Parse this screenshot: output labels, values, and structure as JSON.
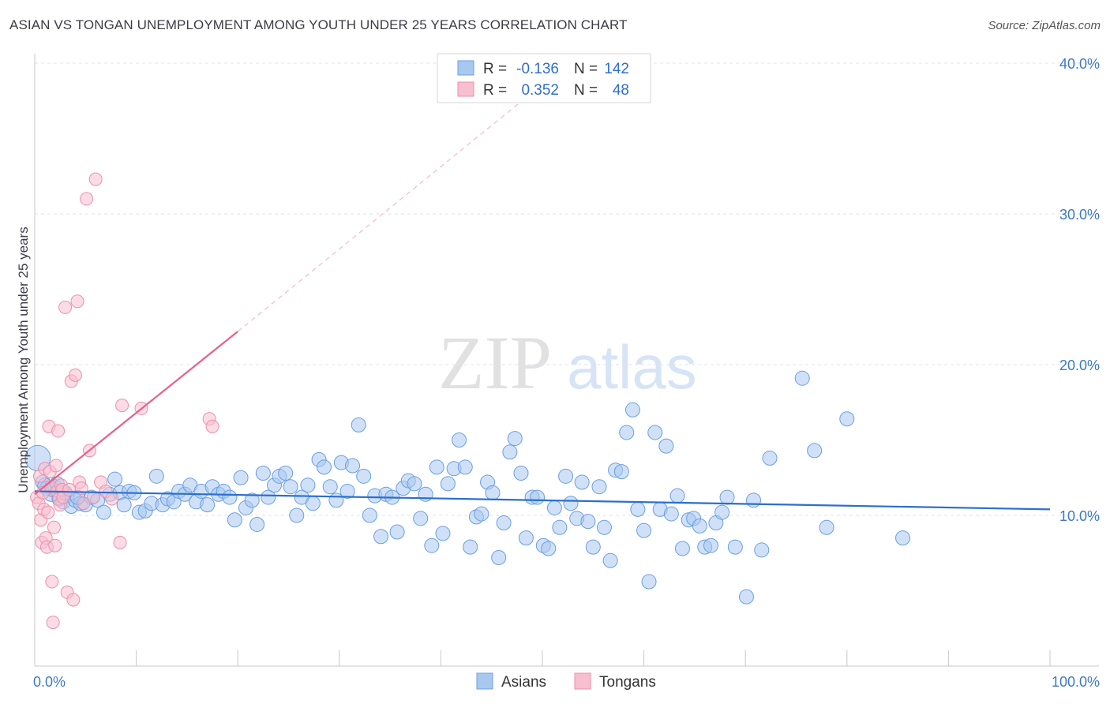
{
  "header": {
    "title": "ASIAN VS TONGAN UNEMPLOYMENT AMONG YOUTH UNDER 25 YEARS CORRELATION CHART",
    "source": "Source: ZipAtlas.com"
  },
  "watermark": {
    "zip": "ZIP",
    "atlas": "atlas"
  },
  "legend": {
    "rows": [
      {
        "r_label": "R =",
        "r_value": "-0.136",
        "n_label": "N =",
        "n_value": "142"
      },
      {
        "r_label": "R =",
        "r_value": "0.352",
        "n_label": "N =",
        "n_value": "48"
      }
    ]
  },
  "colors": {
    "asian_fill": "#a9c8f0",
    "asian_stroke": "#6a9fe0",
    "asian_line": "#2a6fcf",
    "tongan_fill": "#f7bfd0",
    "tongan_stroke": "#ec8fae",
    "tongan_line": "#e8608c",
    "tick_text": "#3d78c8",
    "grid": "#dde3ec"
  },
  "chart_data": {
    "type": "scatter",
    "title": "ASIAN VS TONGAN UNEMPLOYMENT AMONG YOUTH UNDER 25 YEARS CORRELATION CHART",
    "xlabel": "",
    "ylabel": "Unemployment Among Youth under 25 years",
    "xlim": [
      0,
      100
    ],
    "ylim": [
      0,
      41.5
    ],
    "x_tick_labels": [
      "0.0%",
      "100.0%"
    ],
    "y_ticks": [
      10,
      20,
      30,
      40
    ],
    "y_tick_labels": [
      "10.0%",
      "20.0%",
      "30.0%",
      "40.0%"
    ],
    "legend_entries": [
      "Asians",
      "Tongans"
    ],
    "series": [
      {
        "name": "Asians",
        "r": -0.136,
        "n": 142,
        "trend": {
          "x0": 0,
          "y0": 11.6,
          "x1": 100,
          "y1": 10.4
        },
        "points": [
          [
            0.3,
            13.8
          ],
          [
            0.8,
            12.2
          ],
          [
            1.2,
            11.8
          ],
          [
            1.6,
            11.4
          ],
          [
            2.0,
            11.9
          ],
          [
            2.4,
            11.1
          ],
          [
            2.8,
            10.9
          ],
          [
            3.2,
            11.3
          ],
          [
            3.6,
            10.6
          ],
          [
            4.0,
            11.0
          ],
          [
            4.5,
            10.8
          ],
          [
            5.0,
            10.7
          ],
          [
            5.6,
            11.2
          ],
          [
            6.2,
            11.0
          ],
          [
            6.8,
            10.2
          ],
          [
            7.4,
            11.4
          ],
          [
            7.9,
            12.4
          ],
          [
            8.4,
            11.5
          ],
          [
            8.8,
            10.7
          ],
          [
            9.3,
            11.6
          ],
          [
            9.8,
            11.5
          ],
          [
            10.3,
            10.2
          ],
          [
            10.9,
            10.3
          ],
          [
            11.5,
            10.8
          ],
          [
            12.0,
            12.6
          ],
          [
            12.6,
            10.7
          ],
          [
            13.1,
            11.1
          ],
          [
            13.7,
            10.9
          ],
          [
            14.2,
            11.6
          ],
          [
            14.8,
            11.4
          ],
          [
            15.3,
            12.0
          ],
          [
            15.9,
            10.9
          ],
          [
            16.4,
            11.6
          ],
          [
            17.0,
            10.7
          ],
          [
            17.5,
            11.9
          ],
          [
            18.1,
            11.4
          ],
          [
            18.6,
            11.6
          ],
          [
            19.2,
            11.2
          ],
          [
            19.7,
            9.7
          ],
          [
            20.3,
            12.5
          ],
          [
            20.8,
            10.5
          ],
          [
            21.4,
            11.0
          ],
          [
            21.9,
            9.4
          ],
          [
            22.5,
            12.8
          ],
          [
            23.0,
            11.2
          ],
          [
            23.6,
            12.0
          ],
          [
            24.1,
            12.6
          ],
          [
            24.7,
            12.8
          ],
          [
            25.2,
            11.9
          ],
          [
            25.8,
            10.0
          ],
          [
            26.3,
            11.2
          ],
          [
            26.9,
            12.0
          ],
          [
            27.4,
            10.8
          ],
          [
            28.0,
            13.7
          ],
          [
            28.5,
            13.2
          ],
          [
            29.1,
            11.9
          ],
          [
            29.7,
            11.0
          ],
          [
            30.2,
            13.5
          ],
          [
            30.8,
            11.6
          ],
          [
            31.3,
            13.3
          ],
          [
            31.9,
            16.0
          ],
          [
            32.4,
            12.6
          ],
          [
            33.0,
            10.0
          ],
          [
            33.5,
            11.3
          ],
          [
            34.1,
            8.6
          ],
          [
            34.6,
            11.4
          ],
          [
            35.2,
            11.2
          ],
          [
            35.7,
            8.9
          ],
          [
            36.3,
            11.8
          ],
          [
            36.8,
            12.3
          ],
          [
            37.4,
            12.1
          ],
          [
            38.0,
            9.8
          ],
          [
            38.5,
            11.4
          ],
          [
            39.1,
            8.0
          ],
          [
            39.6,
            13.2
          ],
          [
            40.2,
            8.8
          ],
          [
            40.7,
            12.1
          ],
          [
            41.3,
            13.1
          ],
          [
            41.8,
            15.0
          ],
          [
            42.4,
            13.2
          ],
          [
            42.9,
            7.9
          ],
          [
            43.5,
            9.9
          ],
          [
            44.0,
            10.1
          ],
          [
            44.6,
            12.2
          ],
          [
            45.1,
            11.5
          ],
          [
            45.7,
            7.2
          ],
          [
            46.2,
            9.5
          ],
          [
            46.8,
            14.2
          ],
          [
            47.3,
            15.1
          ],
          [
            47.9,
            12.8
          ],
          [
            48.4,
            8.5
          ],
          [
            49.0,
            11.2
          ],
          [
            49.5,
            11.2
          ],
          [
            50.1,
            8.0
          ],
          [
            50.6,
            7.8
          ],
          [
            51.2,
            10.5
          ],
          [
            51.7,
            9.2
          ],
          [
            52.3,
            12.6
          ],
          [
            52.8,
            10.8
          ],
          [
            53.4,
            9.8
          ],
          [
            53.9,
            12.2
          ],
          [
            54.5,
            9.6
          ],
          [
            55.0,
            7.9
          ],
          [
            55.6,
            11.9
          ],
          [
            56.1,
            9.2
          ],
          [
            56.7,
            7.0
          ],
          [
            57.2,
            13.0
          ],
          [
            57.8,
            12.9
          ],
          [
            58.3,
            15.5
          ],
          [
            58.9,
            17.0
          ],
          [
            59.4,
            10.4
          ],
          [
            60.0,
            9.0
          ],
          [
            60.5,
            5.6
          ],
          [
            61.1,
            15.5
          ],
          [
            61.6,
            10.4
          ],
          [
            62.2,
            14.6
          ],
          [
            62.7,
            10.1
          ],
          [
            63.3,
            11.3
          ],
          [
            63.8,
            7.8
          ],
          [
            64.4,
            9.7
          ],
          [
            64.9,
            9.8
          ],
          [
            65.5,
            9.3
          ],
          [
            66.0,
            7.9
          ],
          [
            66.6,
            8.0
          ],
          [
            67.1,
            9.5
          ],
          [
            67.7,
            10.2
          ],
          [
            68.2,
            11.2
          ],
          [
            69.0,
            7.9
          ],
          [
            70.1,
            4.6
          ],
          [
            70.8,
            11.0
          ],
          [
            71.6,
            7.7
          ],
          [
            72.4,
            13.8
          ],
          [
            75.6,
            19.1
          ],
          [
            76.8,
            14.3
          ],
          [
            78.0,
            9.2
          ],
          [
            80.0,
            16.4
          ],
          [
            85.5,
            8.5
          ],
          [
            1.0,
            12.0
          ],
          [
            1.8,
            11.7
          ],
          [
            2.2,
            12.1
          ],
          [
            3.0,
            11.5
          ],
          [
            4.2,
            11.2
          ]
        ]
      },
      {
        "name": "Tongans",
        "r": 0.352,
        "n": 48,
        "trend": {
          "x0": 0,
          "y0": 11.4,
          "x1": 20,
          "y1": 22.2,
          "dash_to_x": 50,
          "dash_to_y": 38.6
        },
        "points": [
          [
            0.2,
            11.2
          ],
          [
            0.4,
            10.8
          ],
          [
            0.5,
            12.6
          ],
          [
            0.6,
            9.7
          ],
          [
            0.7,
            8.2
          ],
          [
            0.8,
            11.5
          ],
          [
            0.9,
            10.4
          ],
          [
            1.0,
            13.1
          ],
          [
            1.1,
            8.5
          ],
          [
            1.2,
            7.9
          ],
          [
            1.3,
            10.2
          ],
          [
            1.4,
            15.9
          ],
          [
            1.5,
            12.9
          ],
          [
            1.6,
            11.9
          ],
          [
            1.7,
            5.6
          ],
          [
            1.8,
            2.9
          ],
          [
            1.9,
            9.2
          ],
          [
            2.0,
            8.0
          ],
          [
            2.1,
            13.3
          ],
          [
            2.2,
            11.6
          ],
          [
            2.3,
            15.6
          ],
          [
            2.4,
            11.1
          ],
          [
            2.5,
            10.7
          ],
          [
            2.6,
            12.0
          ],
          [
            2.7,
            11.7
          ],
          [
            2.8,
            11.2
          ],
          [
            3.0,
            23.8
          ],
          [
            3.2,
            4.9
          ],
          [
            3.4,
            11.7
          ],
          [
            3.6,
            18.9
          ],
          [
            3.8,
            4.4
          ],
          [
            4.0,
            19.3
          ],
          [
            4.2,
            24.2
          ],
          [
            4.4,
            12.2
          ],
          [
            4.6,
            11.8
          ],
          [
            4.8,
            10.8
          ],
          [
            5.1,
            31.0
          ],
          [
            5.4,
            14.3
          ],
          [
            5.8,
            11.2
          ],
          [
            6.0,
            32.3
          ],
          [
            6.5,
            12.2
          ],
          [
            7.0,
            11.6
          ],
          [
            7.6,
            11.1
          ],
          [
            8.4,
            8.2
          ],
          [
            8.6,
            17.3
          ],
          [
            10.5,
            17.1
          ],
          [
            17.2,
            16.4
          ],
          [
            17.5,
            15.9
          ]
        ]
      }
    ]
  }
}
